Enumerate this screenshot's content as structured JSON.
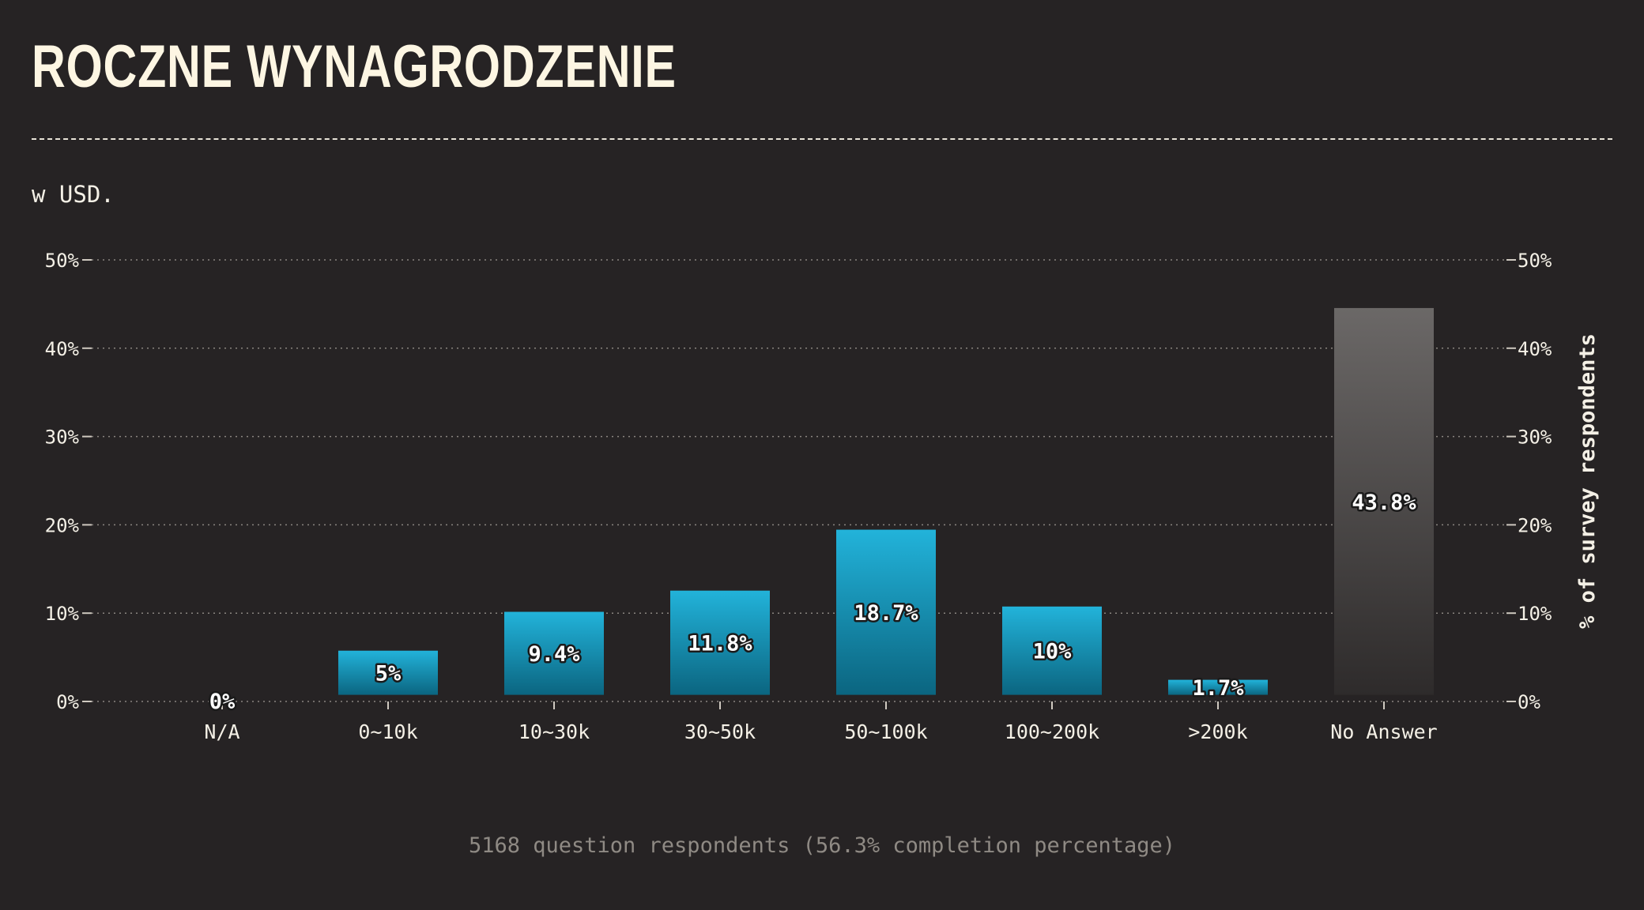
{
  "header": {
    "title": "ROCZNE WYNAGRODZENIE",
    "subtitle": "w USD."
  },
  "footer": {
    "note": "5168 question respondents (56.3% completion percentage)"
  },
  "colors": {
    "background": "#262324",
    "bar_top": "#22b3da",
    "bar_bottom": "#0b6580",
    "no_answer_top": "#6b6867",
    "no_answer_bottom": "#2e2b2b",
    "text": "#f4f0e6"
  },
  "chart_data": {
    "type": "bar",
    "title": "ROCZNE WYNAGRODZENIE",
    "subtitle": "w USD.",
    "xlabel": "",
    "ylabel": "% of survey respondents",
    "ylim": [
      0,
      50
    ],
    "yticks": [
      0,
      10,
      20,
      30,
      40,
      50
    ],
    "ytick_labels": [
      "0%",
      "10%",
      "20%",
      "30%",
      "40%",
      "50%"
    ],
    "grid": true,
    "legend": "none",
    "categories": [
      "N/A",
      "0~10k",
      "10~30k",
      "30~50k",
      "50~100k",
      "100~200k",
      ">200k",
      "No Answer"
    ],
    "values": [
      0,
      5,
      9.4,
      11.8,
      18.7,
      10,
      1.7,
      43.8
    ],
    "value_labels": [
      "0%",
      "5%",
      "9.4%",
      "11.8%",
      "18.7%",
      "10%",
      "1.7%",
      "43.8%"
    ],
    "highlight_category": "No Answer"
  }
}
